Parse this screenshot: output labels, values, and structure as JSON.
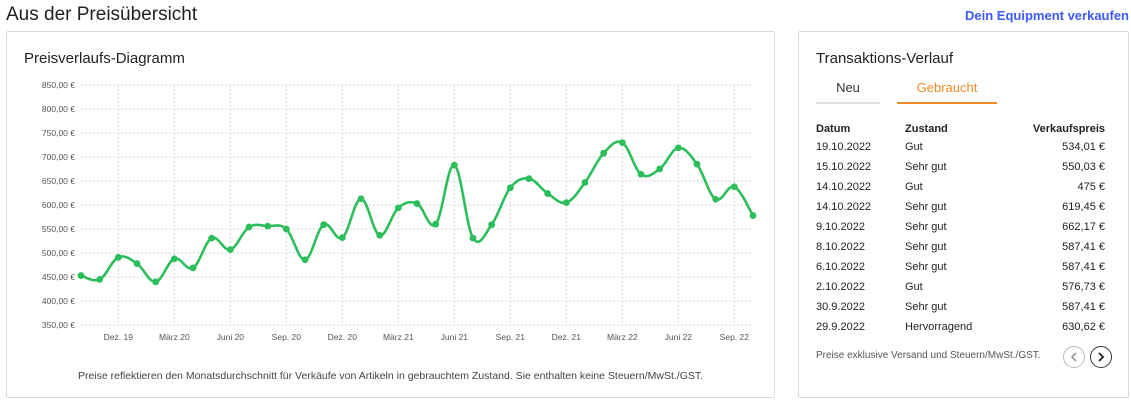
{
  "header": {
    "title": "Aus der Preisübersicht",
    "sell_link": "Dein Equipment verkaufen"
  },
  "chart_card": {
    "title": "Preisverlaufs-Diagramm",
    "note": "Preise reflektieren den Monatsdurchschnitt für Verkäufe von Artikeln in gebrauchtem Zustand. Sie enthalten keine Steuern/MwSt./GST."
  },
  "chart_data": {
    "type": "line",
    "title": "Preisverlaufs-Diagramm",
    "xlabel": "",
    "ylabel": "",
    "ylim": [
      350,
      850
    ],
    "yticks": [
      350,
      400,
      450,
      500,
      550,
      600,
      650,
      700,
      750,
      800,
      850
    ],
    "ytick_labels": [
      "350,00 €",
      "400,00 €",
      "450,00 €",
      "500,00 €",
      "550,00 €",
      "600,00 €",
      "650,00 €",
      "700,00 €",
      "750,00 €",
      "800,00 €",
      "850,00 €"
    ],
    "x_count": 37,
    "xtick_index": [
      2,
      5,
      8,
      11,
      14,
      17,
      20,
      23,
      26,
      29,
      32,
      35
    ],
    "xtick_labels": [
      "Dez. 19",
      "März 20",
      "Juni 20",
      "Sep. 20",
      "Dez. 20",
      "März 21",
      "Juni 21",
      "Sep. 21",
      "Dez. 21",
      "März 22",
      "Juni 22",
      "Sep. 22"
    ],
    "values": [
      453,
      445,
      491,
      478,
      440,
      488,
      469,
      531,
      507,
      554,
      556,
      550,
      486,
      559,
      532,
      613,
      537,
      594,
      603,
      560,
      683,
      531,
      559,
      636,
      655,
      624,
      605,
      647,
      708,
      730,
      664,
      675,
      719,
      685,
      612,
      638,
      578
    ],
    "grid": true,
    "legend": "none",
    "line_color": "#2dbe5c"
  },
  "transactions": {
    "title": "Transaktions-Verlauf",
    "tabs": [
      {
        "label": "Neu",
        "active": false
      },
      {
        "label": "Gebraucht",
        "active": true
      }
    ],
    "columns": {
      "date": "Datum",
      "condition": "Zustand",
      "price": "Verkaufspreis"
    },
    "rows": [
      {
        "date": "19.10.2022",
        "condition": "Gut",
        "price": "534,01 €"
      },
      {
        "date": "15.10.2022",
        "condition": "Sehr gut",
        "price": "550,03 €"
      },
      {
        "date": "14.10.2022",
        "condition": "Gut",
        "price": "475 €"
      },
      {
        "date": "14.10.2022",
        "condition": "Sehr gut",
        "price": "619,45 €"
      },
      {
        "date": "9.10.2022",
        "condition": "Sehr gut",
        "price": "662,17 €"
      },
      {
        "date": "8.10.2022",
        "condition": "Sehr gut",
        "price": "587,41 €"
      },
      {
        "date": "6.10.2022",
        "condition": "Sehr gut",
        "price": "587,41 €"
      },
      {
        "date": "2.10.2022",
        "condition": "Gut",
        "price": "576,73 €"
      },
      {
        "date": "30.9.2022",
        "condition": "Sehr gut",
        "price": "587,41 €"
      },
      {
        "date": "29.9.2022",
        "condition": "Hervorragend",
        "price": "630,62 €"
      }
    ],
    "footer": "Preise exklusive Versand und Steuern/MwSt./GST.",
    "pager": {
      "prev_icon": "chevron-left-icon",
      "next_icon": "chevron-right-icon"
    }
  }
}
